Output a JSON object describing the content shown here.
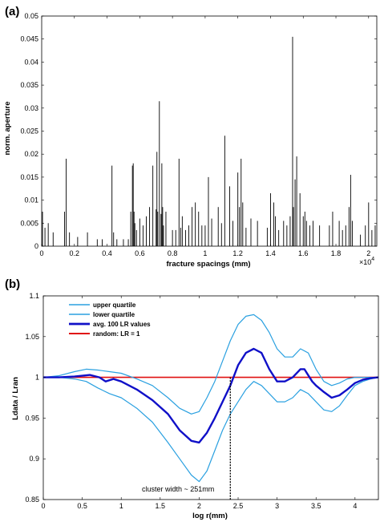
{
  "chart_data": [
    {
      "panel": "(a)",
      "type": "bar",
      "xlabel": "fracture spacings (mm)",
      "ylabel": "norm. aperture",
      "x_multiplier": "×10",
      "x_multiplier_exp": "4",
      "xlim": [
        0,
        2.05
      ],
      "ylim": [
        0,
        0.05
      ],
      "x_ticks": [
        "0",
        "0.2",
        "0.4",
        "0.6",
        "0.8",
        "1",
        "1.2",
        "1.4",
        "1.6",
        "1.8",
        "2"
      ],
      "x_tick_values": [
        0,
        0.2,
        0.4,
        0.6,
        0.8,
        1.0,
        1.2,
        1.4,
        1.6,
        1.8,
        2.0
      ],
      "y_ticks": [
        "0",
        "0.005",
        "0.01",
        "0.015",
        "0.02",
        "0.025",
        "0.03",
        "0.035",
        "0.04",
        "0.045",
        "0.05"
      ],
      "y_tick_values": [
        0,
        0.005,
        0.01,
        0.015,
        0.02,
        0.025,
        0.03,
        0.035,
        0.04,
        0.045,
        0.05
      ],
      "series": [
        {
          "x": [
            0.005,
            0.02,
            0.04,
            0.07,
            0.14,
            0.15,
            0.17,
            0.22,
            0.28,
            0.34,
            0.37,
            0.43,
            0.44,
            0.46,
            0.5,
            0.53,
            0.545,
            0.555,
            0.56,
            0.565,
            0.57,
            0.58,
            0.6,
            0.62,
            0.64,
            0.66,
            0.68,
            0.7,
            0.705,
            0.71,
            0.72,
            0.73,
            0.735,
            0.74,
            0.745,
            0.76,
            0.8,
            0.82,
            0.84,
            0.85,
            0.86,
            0.88,
            0.9,
            0.92,
            0.94,
            0.96,
            0.98,
            1.0,
            1.02,
            1.04,
            1.08,
            1.1,
            1.12,
            1.15,
            1.17,
            1.2,
            1.21,
            1.22,
            1.23,
            1.25,
            1.28,
            1.32,
            1.38,
            1.4,
            1.42,
            1.43,
            1.45,
            1.48,
            1.5,
            1.52,
            1.535,
            1.54,
            1.55,
            1.56,
            1.58,
            1.6,
            1.61,
            1.62,
            1.64,
            1.66,
            1.7,
            1.76,
            1.78,
            1.82,
            1.84,
            1.86,
            1.88,
            1.89,
            1.9,
            1.95,
            1.98,
            2.0,
            2.02,
            2.04
          ],
          "values": [
            0.0075,
            0.004,
            0.005,
            0.003,
            0.0075,
            0.019,
            0.003,
            0.002,
            0.003,
            0.0015,
            0.0015,
            0.0175,
            0.003,
            0.0015,
            0.0015,
            0.0015,
            0.0075,
            0.0175,
            0.018,
            0.0075,
            0.005,
            0.0035,
            0.006,
            0.0045,
            0.0065,
            0.0085,
            0.0175,
            0.008,
            0.0205,
            0.0075,
            0.0315,
            0.007,
            0.018,
            0.0085,
            0.0045,
            0.0075,
            0.0035,
            0.0035,
            0.019,
            0.004,
            0.0065,
            0.0035,
            0.0045,
            0.0085,
            0.0095,
            0.0075,
            0.0045,
            0.0045,
            0.015,
            0.006,
            0.0085,
            0.005,
            0.024,
            0.013,
            0.0055,
            0.016,
            0.0085,
            0.019,
            0.0095,
            0.004,
            0.006,
            0.0055,
            0.004,
            0.0115,
            0.0095,
            0.0065,
            0.0035,
            0.0055,
            0.0045,
            0.0065,
            0.0455,
            0.0085,
            0.0145,
            0.0195,
            0.0115,
            0.0065,
            0.0075,
            0.0055,
            0.0045,
            0.0055,
            0.0045,
            0.0045,
            0.0075,
            0.0055,
            0.0035,
            0.0045,
            0.0085,
            0.0155,
            0.0055,
            0.0025,
            0.0045,
            0.0095,
            0.0035,
            0.0045
          ]
        }
      ]
    },
    {
      "panel": "(b)",
      "type": "line",
      "xlabel": "log r(mm)",
      "ylabel": "Ldata / Lran",
      "xlim": [
        0,
        4.3
      ],
      "ylim": [
        0.85,
        1.1
      ],
      "x_ticks": [
        "0",
        "0.5",
        "1",
        "1.5",
        "2",
        "2.5",
        "3",
        "3.5",
        "4"
      ],
      "x_tick_values": [
        0,
        0.5,
        1,
        1.5,
        2,
        2.5,
        3,
        3.5,
        4
      ],
      "y_ticks": [
        "0.85",
        "0.9",
        "0.95",
        "1",
        "1.05",
        "1.1"
      ],
      "y_tick_values": [
        0.85,
        0.9,
        0.95,
        1.0,
        1.05,
        1.1
      ],
      "legend_position": "top-left",
      "annotation": {
        "text": "cluster width  ~ 251mm",
        "x": 2.4
      },
      "series": [
        {
          "name": "upper quartile",
          "color": "#2aa0e0",
          "x": [
            0,
            0.2,
            0.4,
            0.55,
            0.7,
            0.85,
            1.0,
            1.2,
            1.4,
            1.6,
            1.75,
            1.9,
            2.0,
            2.1,
            2.2,
            2.3,
            2.4,
            2.5,
            2.6,
            2.7,
            2.8,
            2.9,
            3.0,
            3.1,
            3.2,
            3.3,
            3.4,
            3.5,
            3.6,
            3.7,
            3.8,
            3.9,
            4.0,
            4.1,
            4.2,
            4.3
          ],
          "values": [
            1.0,
            1.002,
            1.007,
            1.01,
            1.009,
            1.007,
            1.005,
            0.998,
            0.99,
            0.975,
            0.962,
            0.955,
            0.958,
            0.975,
            0.995,
            1.02,
            1.045,
            1.065,
            1.075,
            1.077,
            1.07,
            1.055,
            1.035,
            1.025,
            1.025,
            1.035,
            1.03,
            1.01,
            0.995,
            0.99,
            0.993,
            0.998,
            1.0,
            1.0,
            1.0,
            1.0
          ]
        },
        {
          "name": "lower quartile",
          "color": "#2aa0e0",
          "x": [
            0,
            0.2,
            0.4,
            0.55,
            0.7,
            0.85,
            1.0,
            1.2,
            1.4,
            1.6,
            1.75,
            1.9,
            2.0,
            2.1,
            2.2,
            2.3,
            2.4,
            2.5,
            2.6,
            2.7,
            2.8,
            2.9,
            3.0,
            3.1,
            3.2,
            3.3,
            3.4,
            3.5,
            3.6,
            3.7,
            3.8,
            3.9,
            4.0,
            4.1,
            4.2,
            4.3
          ],
          "values": [
            1.0,
            1.0,
            0.998,
            0.995,
            0.987,
            0.98,
            0.975,
            0.962,
            0.945,
            0.92,
            0.9,
            0.88,
            0.872,
            0.885,
            0.91,
            0.935,
            0.955,
            0.97,
            0.985,
            0.995,
            0.99,
            0.98,
            0.97,
            0.97,
            0.975,
            0.985,
            0.98,
            0.97,
            0.96,
            0.958,
            0.965,
            0.978,
            0.99,
            0.995,
            0.998,
            1.0
          ]
        },
        {
          "name": "avg. 100 LR values",
          "color": "#1010c8",
          "x": [
            0,
            0.2,
            0.4,
            0.6,
            0.72,
            0.8,
            0.9,
            1.0,
            1.2,
            1.4,
            1.6,
            1.75,
            1.9,
            2.0,
            2.1,
            2.2,
            2.3,
            2.4,
            2.5,
            2.6,
            2.7,
            2.8,
            2.9,
            3.0,
            3.1,
            3.2,
            3.3,
            3.35,
            3.45,
            3.5,
            3.6,
            3.7,
            3.8,
            3.9,
            4.0,
            4.1,
            4.2,
            4.3
          ],
          "values": [
            1.0,
            1.0,
            1.001,
            1.003,
            1.0,
            0.995,
            0.998,
            0.995,
            0.985,
            0.972,
            0.955,
            0.935,
            0.922,
            0.92,
            0.932,
            0.95,
            0.97,
            0.99,
            1.015,
            1.03,
            1.035,
            1.03,
            1.01,
            0.995,
            0.995,
            1.0,
            1.01,
            1.01,
            0.995,
            0.99,
            0.982,
            0.975,
            0.978,
            0.985,
            0.993,
            0.997,
            0.999,
            1.0
          ]
        },
        {
          "name": "random: LR = 1",
          "color": "#e01010",
          "x": [
            0,
            4.3
          ],
          "values": [
            1.0,
            1.0
          ]
        }
      ]
    }
  ]
}
